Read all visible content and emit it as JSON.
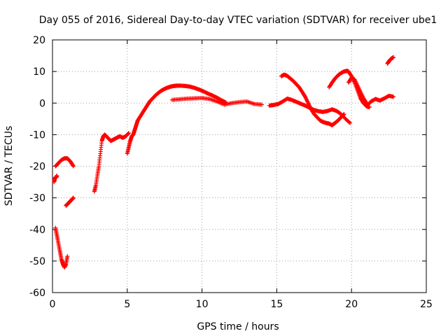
{
  "chart_data": {
    "type": "scatter",
    "title": "Day 055 of 2016, Sidereal Day-to-day VTEC variation (SDTVAR) for receiver ube1",
    "xlabel": "GPS time / hours",
    "ylabel": "SDTVAR / TECUs",
    "xlim": [
      0,
      25
    ],
    "ylim": [
      -60,
      20
    ],
    "xticks": [
      0,
      5,
      10,
      15,
      20,
      25
    ],
    "yticks": [
      -60,
      -50,
      -40,
      -30,
      -20,
      -10,
      0,
      10,
      20
    ],
    "grid": true,
    "marker": "+",
    "color": "#ff0000",
    "segments": [
      {
        "x": [
          0.1,
          0.15,
          0.2,
          0.25,
          0.3
        ],
        "y": [
          -25,
          -24,
          -23.5,
          -23.5,
          -23
        ]
      },
      {
        "x": [
          0.2,
          0.4,
          0.6,
          0.8,
          1.0,
          1.2,
          1.4
        ],
        "y": [
          -20,
          -19,
          -18,
          -17.5,
          -17.5,
          -18.5,
          -20
        ]
      },
      {
        "x": [
          0.2,
          0.3,
          0.4,
          0.5,
          0.6,
          0.7,
          0.8,
          0.9,
          1.0
        ],
        "y": [
          -39.5,
          -42,
          -44.5,
          -47,
          -49.5,
          -51,
          -52,
          -51,
          -48.5
        ]
      },
      {
        "x": [
          0.9,
          1.0,
          1.1,
          1.2,
          1.3,
          1.4
        ],
        "y": [
          -32.5,
          -32,
          -31.5,
          -31,
          -30.5,
          -30
        ]
      },
      {
        "x": [
          2.8,
          2.9,
          3.0,
          3.1,
          3.2,
          3.3,
          3.4,
          3.5
        ],
        "y": [
          -28,
          -26,
          -23,
          -20,
          -16,
          -12,
          -10.5,
          -10
        ]
      },
      {
        "x": [
          3.5,
          3.7,
          3.9,
          4.1,
          4.3,
          4.5,
          4.7,
          4.9,
          5.1
        ],
        "y": [
          -10,
          -11,
          -12,
          -11.5,
          -11,
          -10.5,
          -11,
          -10.5,
          -9.5
        ]
      },
      {
        "x": [
          5.0,
          5.1,
          5.2,
          5.3,
          5.4,
          5.5,
          5.6,
          5.7
        ],
        "y": [
          -16,
          -14,
          -12,
          -10.5,
          -10,
          -8.5,
          -7,
          -5.5
        ]
      },
      {
        "x": [
          5.7,
          5.9,
          6.1,
          6.3,
          6.5,
          6.7,
          6.9,
          7.1,
          7.3,
          7.5,
          7.7,
          7.9,
          8.1,
          8.3
        ],
        "y": [
          -5.5,
          -4,
          -2.5,
          -1,
          0.5,
          1.5,
          2.5,
          3.3,
          4,
          4.5,
          4.9,
          5.2,
          5.4,
          5.5
        ]
      },
      {
        "x": [
          8.3,
          8.6,
          8.9,
          9.2,
          9.5,
          9.8,
          10.1,
          10.4,
          10.7,
          11.0,
          11.3,
          11.6
        ],
        "y": [
          5.5,
          5.5,
          5.4,
          5.2,
          4.8,
          4.3,
          3.7,
          3.0,
          2.4,
          1.7,
          0.9,
          0.2
        ]
      },
      {
        "x": [
          8.0,
          8.5,
          9.0,
          9.5,
          10.0,
          10.5,
          11.0,
          11.5,
          12.0,
          12.5,
          13.0,
          13.5,
          14.0
        ],
        "y": [
          1.0,
          1.2,
          1.4,
          1.5,
          1.6,
          1.3,
          0.5,
          -0.5,
          0.0,
          0.3,
          0.5,
          -0.3,
          -0.5
        ]
      },
      {
        "x": [
          14.5,
          14.8,
          15.1,
          15.4,
          15.7,
          16.0,
          16.3,
          16.6,
          16.9,
          17.2,
          17.5,
          17.8,
          18.1,
          18.4,
          18.7,
          19.0,
          19.3,
          19.6,
          19.9
        ],
        "y": [
          -0.8,
          -0.6,
          -0.3,
          0.5,
          1.4,
          1.0,
          0.4,
          -0.2,
          -0.8,
          -1.5,
          -2.2,
          -2.6,
          -2.8,
          -2.5,
          -2.0,
          -2.5,
          -3.5,
          -5.0,
          -6.3
        ]
      },
      {
        "x": [
          15.3,
          15.5,
          15.7,
          15.9,
          16.1,
          16.3,
          16.5,
          16.7,
          16.9,
          17.1,
          17.3,
          17.5,
          17.7,
          17.9,
          18.1,
          18.3,
          18.5,
          18.7
        ],
        "y": [
          8.5,
          9.0,
          8.6,
          7.8,
          7.0,
          6.0,
          5.0,
          3.5,
          2.0,
          0.0,
          -2.0,
          -3.5,
          -4.5,
          -5.5,
          -6.0,
          -6.3,
          -6.5,
          -7.0
        ]
      },
      {
        "x": [
          18.7,
          18.9,
          19.1,
          19.3,
          19.5
        ],
        "y": [
          -7.0,
          -6.3,
          -5.5,
          -4.5,
          -3.5
        ]
      },
      {
        "x": [
          18.5,
          18.7,
          18.9,
          19.1,
          19.3,
          19.5,
          19.7,
          19.8
        ],
        "y": [
          5.0,
          6.5,
          7.8,
          8.8,
          9.5,
          10.0,
          10.2,
          10.0
        ]
      },
      {
        "x": [
          19.8,
          20.0,
          20.2,
          20.4,
          20.6,
          20.8,
          21.0,
          21.2
        ],
        "y": [
          10.0,
          8.5,
          6.5,
          4.0,
          1.5,
          0.0,
          -1.0,
          -1.3
        ]
      },
      {
        "x": [
          19.8,
          20.0,
          20.2,
          20.4,
          20.6,
          20.8,
          21.0
        ],
        "y": [
          6.5,
          8.0,
          7.5,
          5.5,
          3.5,
          1.5,
          0.0
        ]
      },
      {
        "x": [
          21.0,
          21.3,
          21.6,
          21.9,
          22.2,
          22.5,
          22.8
        ],
        "y": [
          -1.0,
          0.5,
          1.3,
          0.8,
          1.5,
          2.3,
          2.0
        ]
      },
      {
        "x": [
          22.4,
          22.5,
          22.6,
          22.7,
          22.8
        ],
        "y": [
          12.5,
          13.2,
          13.8,
          14.2,
          14.5
        ]
      }
    ]
  }
}
